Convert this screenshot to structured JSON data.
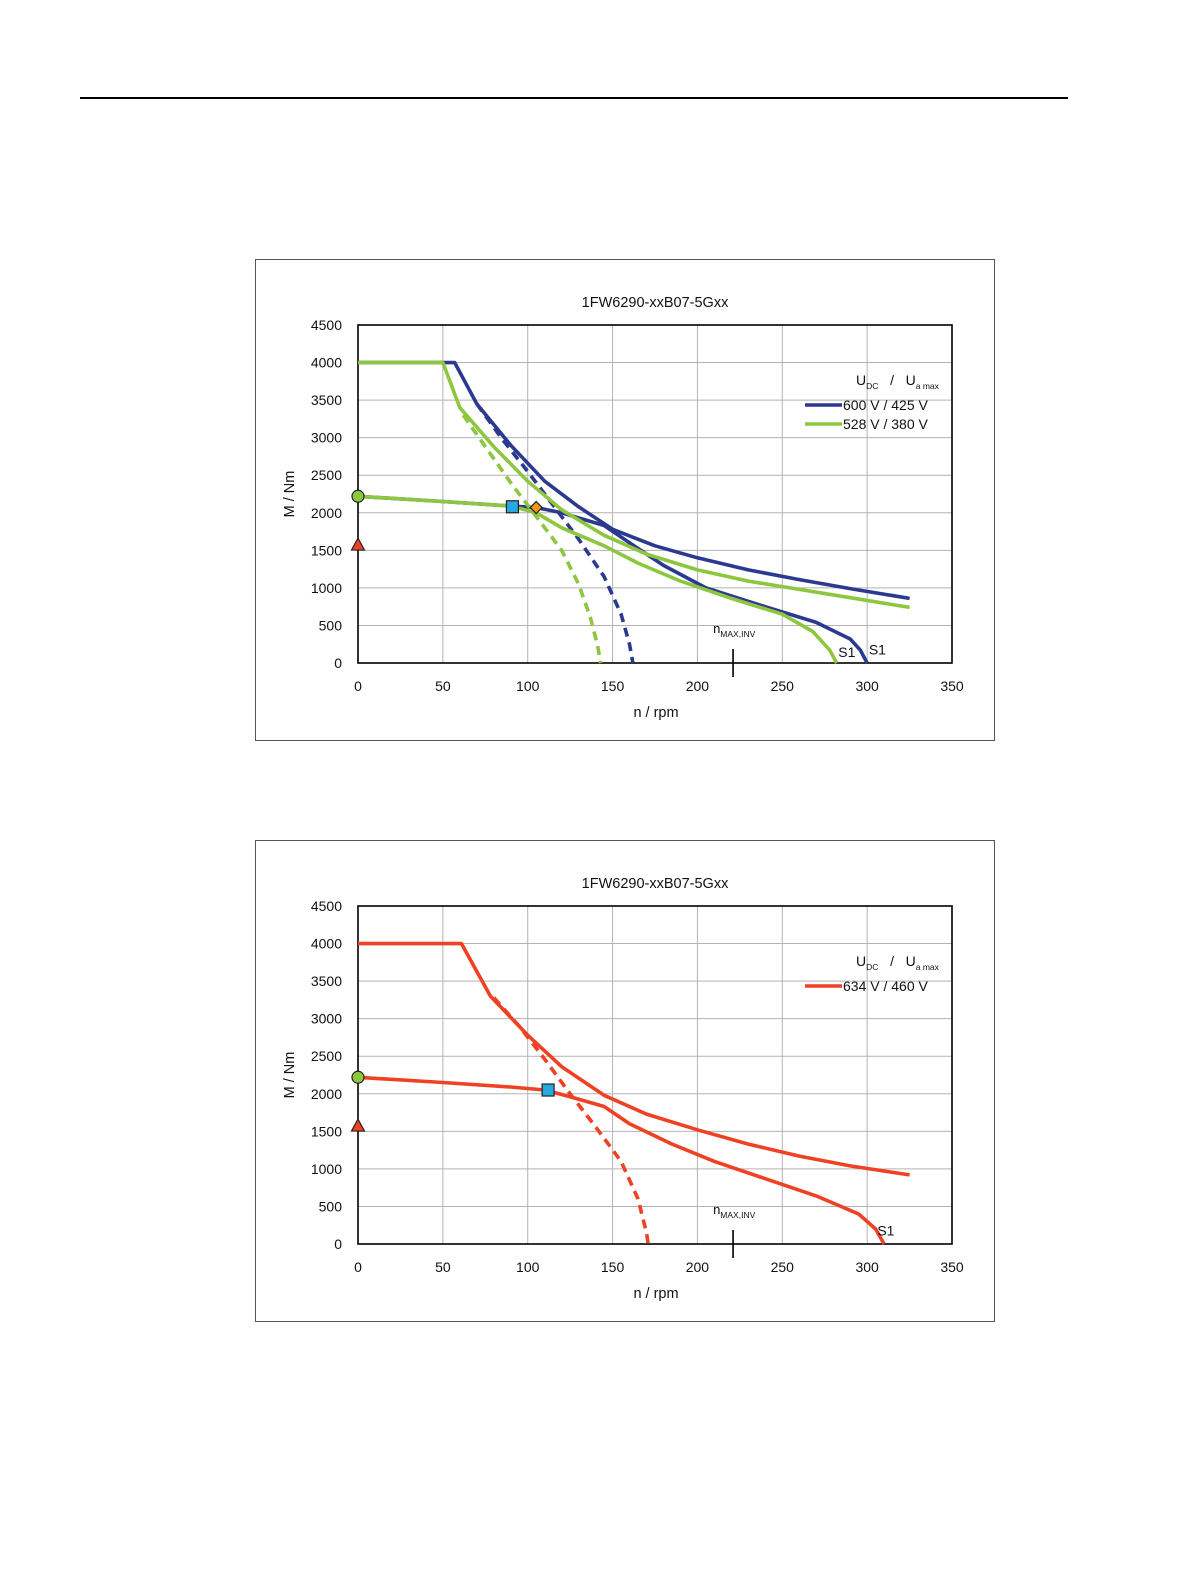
{
  "chart_data": [
    {
      "type": "line",
      "title": "1FW6290-xxB07-5Gxx",
      "xlabel": "n / rpm",
      "ylabel": "M / Nm",
      "xlim": [
        0,
        350
      ],
      "ylim": [
        0,
        4500
      ],
      "xticks": [
        "0",
        "50",
        "100",
        "150",
        "200",
        "250",
        "300",
        "350"
      ],
      "yticks": [
        "0",
        "500",
        "1000",
        "1500",
        "2000",
        "2500",
        "3000",
        "3500",
        "4000",
        "4500"
      ],
      "grid": true,
      "legend_position": "top-right",
      "legend_header": {
        "main1": "U",
        "sub1": "DC",
        "sep": "/",
        "main2": "U",
        "sub2": "a max"
      },
      "nmax_label": {
        "main": "n",
        "sub": "MAX,INV"
      },
      "nmax_value": 221,
      "series": [
        {
          "name": "600 V / 425 V",
          "color": "#2b3990",
          "curves": [
            {
              "style": "solid",
              "points": [
                [
                  0,
                  4000
                ],
                [
                  57,
                  4000
                ],
                [
                  70,
                  3450
                ],
                [
                  90,
                  2900
                ],
                [
                  110,
                  2420
                ],
                [
                  130,
                  2080
                ],
                [
                  150,
                  1780
                ],
                [
                  175,
                  1560
                ],
                [
                  200,
                  1400
                ],
                [
                  230,
                  1240
                ],
                [
                  260,
                  1110
                ],
                [
                  290,
                  990
                ],
                [
                  325,
                  860
                ]
              ]
            },
            {
              "style": "solid",
              "points": [
                [
                  0,
                  2220
                ],
                [
                  50,
                  2150
                ],
                [
                  90,
                  2090
                ],
                [
                  105,
                  2070
                ],
                [
                  120,
                  2000
                ],
                [
                  145,
                  1830
                ],
                [
                  160,
                  1600
                ],
                [
                  180,
                  1300
                ],
                [
                  205,
                  1000
                ],
                [
                  240,
                  750
                ],
                [
                  270,
                  540
                ],
                [
                  290,
                  320
                ],
                [
                  296,
                  170
                ],
                [
                  300,
                  0
                ]
              ]
            },
            {
              "style": "dashed",
              "points": [
                [
                  70,
                  3450
                ],
                [
                  85,
                  2980
                ],
                [
                  100,
                  2550
                ],
                [
                  115,
                  2100
                ],
                [
                  130,
                  1650
                ],
                [
                  145,
                  1150
                ],
                [
                  155,
                  650
                ],
                [
                  160,
                  250
                ],
                [
                  162,
                  0
                ]
              ]
            }
          ]
        },
        {
          "name": "528 V / 380 V",
          "color": "#8dc63f",
          "curves": [
            {
              "style": "solid",
              "points": [
                [
                  0,
                  4000
                ],
                [
                  50,
                  4000
                ],
                [
                  60,
                  3400
                ],
                [
                  80,
                  2880
                ],
                [
                  100,
                  2420
                ],
                [
                  120,
                  2040
                ],
                [
                  145,
                  1700
                ],
                [
                  170,
                  1450
                ],
                [
                  200,
                  1240
                ],
                [
                  230,
                  1090
                ],
                [
                  260,
                  980
                ],
                [
                  290,
                  870
                ],
                [
                  325,
                  740
                ]
              ]
            },
            {
              "style": "solid",
              "points": [
                [
                  0,
                  2220
                ],
                [
                  50,
                  2150
                ],
                [
                  90,
                  2090
                ],
                [
                  105,
                  2000
                ],
                [
                  120,
                  1800
                ],
                [
                  145,
                  1560
                ],
                [
                  165,
                  1330
                ],
                [
                  190,
                  1090
                ],
                [
                  220,
                  860
                ],
                [
                  250,
                  650
                ],
                [
                  268,
                  420
                ],
                [
                  278,
                  170
                ],
                [
                  282,
                  0
                ]
              ]
            },
            {
              "style": "dashed",
              "points": [
                [
                  62,
                  3300
                ],
                [
                  75,
                  2880
                ],
                [
                  90,
                  2400
                ],
                [
                  105,
                  1950
                ],
                [
                  120,
                  1500
                ],
                [
                  130,
                  1050
                ],
                [
                  137,
                  600
                ],
                [
                  141,
                  250
                ],
                [
                  143,
                  0
                ]
              ]
            }
          ]
        }
      ],
      "curve_labels": [
        {
          "text": "S1",
          "x": 283,
          "y": 80,
          "color": "#111"
        },
        {
          "text": "S1",
          "x": 301,
          "y": 110,
          "color": "#111"
        }
      ],
      "markers": [
        {
          "shape": "circle",
          "x": 0,
          "y": 2220,
          "fill": "#8dc63f"
        },
        {
          "shape": "triangle",
          "x": 0,
          "y": 1570,
          "fill": "#ef4123"
        },
        {
          "shape": "square",
          "x": 91,
          "y": 2080,
          "fill": "#27aae1"
        },
        {
          "shape": "diamond",
          "x": 105,
          "y": 2070,
          "fill": "#f7941d"
        }
      ]
    },
    {
      "type": "line",
      "title": "1FW6290-xxB07-5Gxx",
      "xlabel": "n / rpm",
      "ylabel": "M / Nm",
      "xlim": [
        0,
        350
      ],
      "ylim": [
        0,
        4500
      ],
      "xticks": [
        "0",
        "50",
        "100",
        "150",
        "200",
        "250",
        "300",
        "350"
      ],
      "yticks": [
        "0",
        "500",
        "1000",
        "1500",
        "2000",
        "2500",
        "3000",
        "3500",
        "4000",
        "4500"
      ],
      "grid": true,
      "legend_position": "top-right",
      "legend_header": {
        "main1": "U",
        "sub1": "DC",
        "sep": "/",
        "main2": "U",
        "sub2": "a max"
      },
      "nmax_label": {
        "main": "n",
        "sub": "MAX,INV"
      },
      "nmax_value": 221,
      "series": [
        {
          "name": "634 V / 460 V",
          "color": "#ef4123",
          "curves": [
            {
              "style": "solid",
              "points": [
                [
                  0,
                  4000
                ],
                [
                  61,
                  4000
                ],
                [
                  78,
                  3300
                ],
                [
                  100,
                  2780
                ],
                [
                  120,
                  2360
                ],
                [
                  145,
                  1980
                ],
                [
                  170,
                  1730
                ],
                [
                  200,
                  1520
                ],
                [
                  230,
                  1330
                ],
                [
                  260,
                  1170
                ],
                [
                  290,
                  1040
                ],
                [
                  325,
                  920
                ]
              ]
            },
            {
              "style": "solid",
              "points": [
                [
                  0,
                  2220
                ],
                [
                  50,
                  2150
                ],
                [
                  90,
                  2090
                ],
                [
                  110,
                  2050
                ],
                [
                  125,
                  1960
                ],
                [
                  145,
                  1830
                ],
                [
                  160,
                  1600
                ],
                [
                  185,
                  1330
                ],
                [
                  210,
                  1100
                ],
                [
                  240,
                  870
                ],
                [
                  270,
                  640
                ],
                [
                  295,
                  400
                ],
                [
                  305,
                  200
                ],
                [
                  310,
                  0
                ]
              ]
            },
            {
              "style": "dashed",
              "points": [
                [
                  80,
                  3280
                ],
                [
                  95,
                  2900
                ],
                [
                  110,
                  2460
                ],
                [
                  125,
                  2000
                ],
                [
                  140,
                  1560
                ],
                [
                  155,
                  1100
                ],
                [
                  165,
                  600
                ],
                [
                  170,
                  150
                ],
                [
                  171,
                  0
                ]
              ]
            }
          ]
        }
      ],
      "curve_labels": [
        {
          "text": "S1",
          "x": 306,
          "y": 110,
          "color": "#111"
        }
      ],
      "markers": [
        {
          "shape": "circle",
          "x": 0,
          "y": 2220,
          "fill": "#8dc63f"
        },
        {
          "shape": "triangle",
          "x": 0,
          "y": 1570,
          "fill": "#ef4123"
        },
        {
          "shape": "square",
          "x": 112,
          "y": 2050,
          "fill": "#27aae1"
        }
      ]
    }
  ]
}
